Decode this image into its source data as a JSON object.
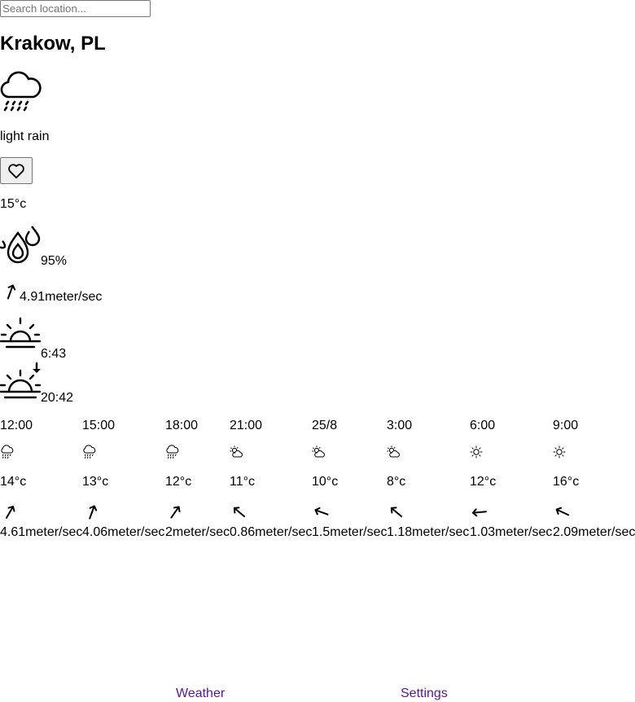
{
  "search": {
    "placeholder": "Search location..."
  },
  "location": {
    "name": "Krakow, PL"
  },
  "current": {
    "icon": "cloud-rain-icon",
    "description": "light rain",
    "favorite_icon": "heart-icon",
    "temperature": "15°c",
    "humidity_icon": "humidity-drops-icon",
    "humidity": "95%",
    "wind_icon": "wind-direction-arrow-icon",
    "wind_direction_deg": 20,
    "wind_speed": "4.91meter/sec",
    "sunrise_icon": "sunrise-icon",
    "sunrise": "6:43",
    "sunset_icon": "sunset-icon",
    "sunset": "20:42"
  },
  "forecast": [
    {
      "time": "12:00",
      "icon": "rain-icon",
      "temp": "14°c",
      "wind_deg": 30,
      "wind": "4.61meter/sec"
    },
    {
      "time": "15:00",
      "icon": "rain-icon",
      "temp": "13°c",
      "wind_deg": 20,
      "wind": "4.06meter/sec"
    },
    {
      "time": "18:00",
      "icon": "rain-icon",
      "temp": "12°c",
      "wind_deg": 35,
      "wind": "2meter/sec"
    },
    {
      "time": "21:00",
      "icon": "partly-cloudy-icon",
      "temp": "11°c",
      "wind_deg": -50,
      "wind": "0.86meter/sec"
    },
    {
      "time": "25/8",
      "icon": "partly-cloudy-icon",
      "temp": "10°c",
      "wind_deg": -70,
      "wind": "1.5meter/sec"
    },
    {
      "time": "3:00",
      "icon": "partly-cloudy-icon",
      "temp": "8°c",
      "wind_deg": -50,
      "wind": "1.18meter/sec"
    },
    {
      "time": "6:00",
      "icon": "sun-icon",
      "temp": "12°c",
      "wind_deg": -95,
      "wind": "1.03meter/sec"
    },
    {
      "time": "9:00",
      "icon": "sun-icon",
      "temp": "16°c",
      "wind_deg": -65,
      "wind": "2.09meter/sec"
    }
  ],
  "nav": {
    "weather": "Weather",
    "settings": "Settings"
  },
  "colors": {
    "link_visited": "#551a8b",
    "text": "#000000"
  }
}
